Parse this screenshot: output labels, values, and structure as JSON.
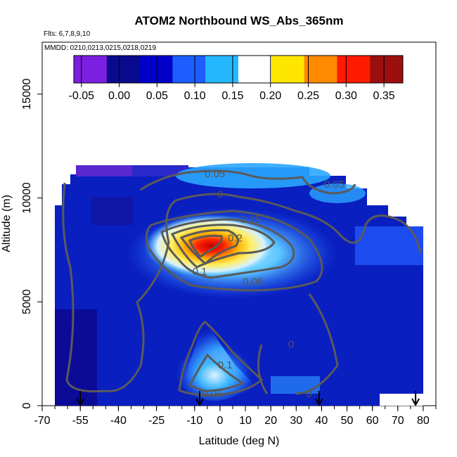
{
  "chart_data": {
    "type": "heatmap",
    "title": "ATOM2 Northbound WS_Abs_365nm",
    "flights_label": "Flts: 6,7,8,9,10",
    "dates_label": "MMDD: 0210,0213,0215,0218,0219",
    "xlabel": "Latitude (deg N)",
    "ylabel": "Altitude (m)",
    "xlim": [
      -70,
      85
    ],
    "ylim": [
      0,
      17500
    ],
    "x_ticks": [
      -70,
      -55,
      -40,
      -25,
      -10,
      0,
      10,
      20,
      30,
      40,
      50,
      60,
      70,
      80
    ],
    "x_tick_labels": [
      "-70",
      "-55",
      "-40",
      "-25",
      "-10",
      "0",
      "10",
      "20",
      "30",
      "40",
      "50",
      "60",
      "70",
      "80"
    ],
    "y_ticks": [
      0,
      5000,
      10000,
      15000
    ],
    "y_tick_labels": [
      "0",
      "5000",
      "10000",
      "15000"
    ],
    "colorbar": {
      "range": [
        -0.06,
        0.375
      ],
      "ticks": [
        -0.05,
        0.0,
        0.05,
        0.1,
        0.15,
        0.2,
        0.25,
        0.3,
        0.35
      ],
      "tick_labels": [
        "-0.05",
        "0.00",
        "0.05",
        "0.10",
        "0.15",
        "0.20",
        "0.25",
        "0.30",
        "0.35"
      ],
      "colors": [
        "#7d1fe0",
        "#0a0a8f",
        "#0000c8",
        "#1e5eff",
        "#26b8ff",
        "#ffffff",
        "#ffe600",
        "#ff8a00",
        "#ff1a00",
        "#9c0f0f"
      ]
    },
    "contours": [
      {
        "label": "0",
        "level": 0.0,
        "lat": 0,
        "alt": 10000
      },
      {
        "label": "0.05",
        "level": 0.05,
        "lat": -2,
        "alt": 11000
      },
      {
        "label": "0.05",
        "level": 0.05,
        "lat": 45,
        "alt": 10500
      },
      {
        "label": "0.15",
        "level": 0.15,
        "lat": 12,
        "alt": 8800
      },
      {
        "label": "0.2",
        "level": 0.2,
        "lat": 6,
        "alt": 7900
      },
      {
        "label": "0.1",
        "level": 0.1,
        "lat": -8,
        "alt": 6300
      },
      {
        "label": "0.05",
        "level": 0.05,
        "lat": 13,
        "alt": 5800
      },
      {
        "label": "0",
        "level": 0.0,
        "lat": 28,
        "alt": 2800
      },
      {
        "label": "0.1",
        "level": 0.1,
        "lat": 2,
        "alt": 1800
      },
      {
        "label": "0.05",
        "level": 0.05,
        "lat": -3,
        "alt": 400
      },
      {
        "label": "0",
        "level": 0.0,
        "lat": 35,
        "alt": 400
      }
    ],
    "arrows_lat": [
      -55,
      -8,
      39,
      77
    ],
    "grid": false
  }
}
